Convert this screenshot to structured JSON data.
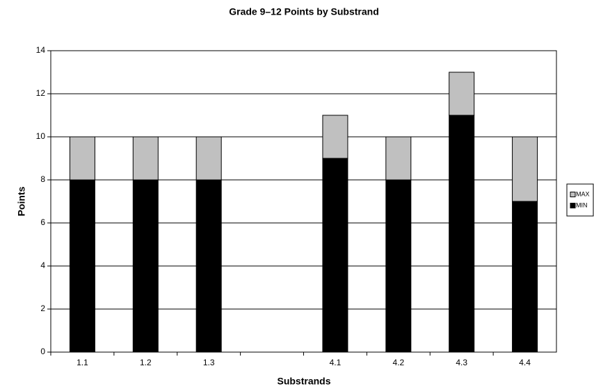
{
  "chart_data": {
    "type": "stacked-bar",
    "title": "Grade 9–12 Points by Substrand",
    "x_label": "Substrands",
    "y_label": "Points",
    "categories": [
      "1.1",
      "1.2",
      "1.3",
      null,
      "4.1",
      "4.2",
      "4.3",
      "4.4"
    ],
    "series": [
      {
        "name": "MIN",
        "color": "#000000",
        "values": [
          8,
          8,
          8,
          null,
          9,
          8,
          11,
          7
        ]
      },
      {
        "name": "MAX",
        "color": "#c0c0c0",
        "values": [
          2,
          2,
          2,
          null,
          2,
          2,
          2,
          3
        ]
      }
    ],
    "ylim": [
      0,
      14
    ],
    "yticks": [
      0,
      2,
      4,
      6,
      8,
      10,
      12,
      14
    ],
    "grid": true,
    "legend": "right"
  }
}
